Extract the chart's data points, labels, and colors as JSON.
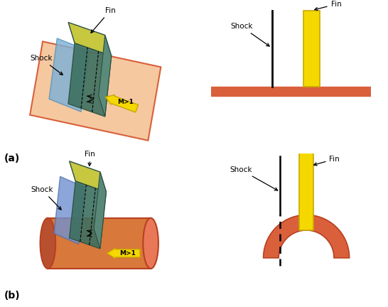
{
  "bg_color": "#ffffff",
  "plate_face": "#f5c8a0",
  "plate_edge": "#d9603b",
  "cylinder_body": "#d9603b",
  "cylinder_left": "#c05030",
  "cylinder_right": "#e87050",
  "cylinder_edge": "#b84020",
  "fin_face": "#f5d800",
  "fin_edge": "#c8a800",
  "shock_blue": "#7ab0d8",
  "shock_edge": "#5090b8",
  "fin3d_face": "#3d7060",
  "fin3d_top": "#c8c840",
  "fin3d_edge": "#2a5040",
  "shock_line": "#000000",
  "arrow_fc": "#f5d800",
  "arrow_ec": "#c8a800",
  "arch_face": "#d9603b",
  "arch_edge": "#b84020",
  "label_a": "(a)",
  "label_b": "(b)",
  "shock_label": "Shock",
  "fin_label": "Fin",
  "mach_label": "M>1"
}
